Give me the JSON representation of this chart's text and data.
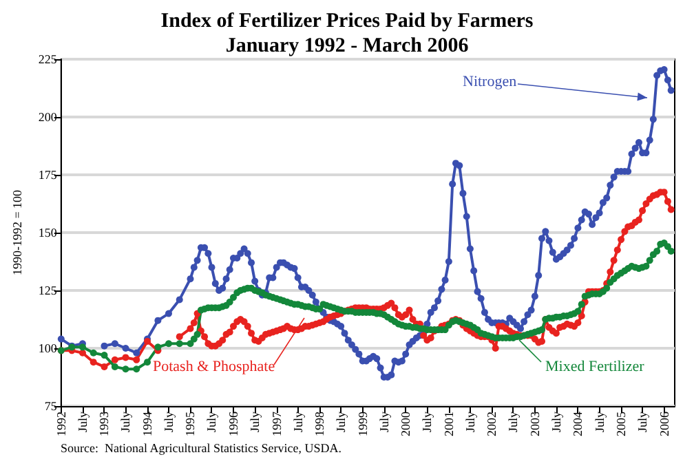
{
  "chart_data": {
    "type": "line",
    "title": "Index of Fertilizer Prices Paid by Farmers",
    "subtitle": "January 1992 - March 2006",
    "ylabel": "1990-1992 = 100",
    "annotations": [
      "Source:  National Agricultural Statistics Service, USDA."
    ],
    "x": [
      "1992-01",
      "1992-04",
      "1992-07",
      "1992-10",
      "1993-01",
      "1993-04",
      "1993-07",
      "1993-10",
      "1994-01",
      "1994-04",
      "1994-07",
      "1994-10",
      "1995-01",
      "1995-02",
      "1995-03",
      "1995-04",
      "1995-05",
      "1995-06",
      "1995-07",
      "1995-08",
      "1995-09",
      "1995-10",
      "1995-11",
      "1995-12",
      "1996-01",
      "1996-02",
      "1996-03",
      "1996-04",
      "1996-05",
      "1996-06",
      "1996-07",
      "1996-08",
      "1996-09",
      "1996-10",
      "1996-11",
      "1996-12",
      "1997-01",
      "1997-02",
      "1997-03",
      "1997-04",
      "1997-05",
      "1997-06",
      "1997-07",
      "1997-08",
      "1997-09",
      "1997-10",
      "1997-11",
      "1997-12",
      "1998-01",
      "1998-02",
      "1998-03",
      "1998-04",
      "1998-05",
      "1998-06",
      "1998-07",
      "1998-08",
      "1998-09",
      "1998-10",
      "1998-11",
      "1998-12",
      "1999-01",
      "1999-02",
      "1999-03",
      "1999-04",
      "1999-05",
      "1999-06",
      "1999-07",
      "1999-08",
      "1999-09",
      "1999-10",
      "1999-11",
      "1999-12",
      "2000-01",
      "2000-02",
      "2000-03",
      "2000-04",
      "2000-05",
      "2000-06",
      "2000-07",
      "2000-08",
      "2000-09",
      "2000-10",
      "2000-11",
      "2000-12",
      "2001-01",
      "2001-02",
      "2001-03",
      "2001-04",
      "2001-05",
      "2001-06",
      "2001-07",
      "2001-08",
      "2001-09",
      "2001-10",
      "2001-11",
      "2001-12",
      "2002-01",
      "2002-02",
      "2002-03",
      "2002-04",
      "2002-05",
      "2002-06",
      "2002-07",
      "2002-08",
      "2002-09",
      "2002-10",
      "2002-11",
      "2002-12",
      "2003-01",
      "2003-02",
      "2003-03",
      "2003-04",
      "2003-05",
      "2003-06",
      "2003-07",
      "2003-08",
      "2003-09",
      "2003-10",
      "2003-11",
      "2003-12",
      "2004-01",
      "2004-02",
      "2004-03",
      "2004-04",
      "2004-05",
      "2004-06",
      "2004-07",
      "2004-08",
      "2004-09",
      "2004-10",
      "2004-11",
      "2004-12",
      "2005-01",
      "2005-02",
      "2005-03",
      "2005-04",
      "2005-05",
      "2005-06",
      "2005-07",
      "2005-08",
      "2005-09",
      "2005-10",
      "2005-11",
      "2005-12",
      "2006-01",
      "2006-02",
      "2006-03"
    ],
    "series": [
      {
        "name": "Nitrogen",
        "color": "#3a4fb0",
        "values": [
          104,
          101,
          102,
          null,
          101,
          102,
          100,
          98,
          104,
          112,
          115,
          121,
          130,
          135,
          138,
          143.5,
          143.5,
          141,
          135,
          128,
          125,
          126,
          130,
          134,
          139,
          139,
          141,
          143,
          141,
          137,
          129,
          125,
          123,
          124,
          130.5,
          130.5,
          135,
          137,
          137,
          136,
          135,
          134.5,
          130.5,
          126.5,
          126.5,
          125,
          123,
          120,
          117,
          115.5,
          113.5,
          112,
          111.5,
          110.5,
          109.5,
          106.5,
          103.5,
          101.5,
          99.5,
          97.5,
          94.5,
          94.5,
          95.5,
          96.5,
          95.5,
          91.5,
          87.5,
          87.5,
          88.5,
          94.5,
          94,
          94.5,
          97.5,
          101.5,
          103,
          104.5,
          105.5,
          106.5,
          110.5,
          115.5,
          117.5,
          120.5,
          125.5,
          129.5,
          137.5,
          171,
          180,
          179,
          167,
          157,
          143,
          133.5,
          124.5,
          121.5,
          115.5,
          112.5,
          111,
          111,
          111,
          111,
          110.5,
          113,
          111.5,
          110,
          108.5,
          111.5,
          114.5,
          116.5,
          122.5,
          131.5,
          147.5,
          150.5,
          146.5,
          141.5,
          138.5,
          139.5,
          141,
          142.5,
          144.5,
          147.5,
          152,
          155.5,
          159,
          158,
          153.5,
          156.5,
          158.5,
          163,
          165,
          170.5,
          174,
          176.5,
          176.5,
          176.5,
          176.5,
          184,
          186.5,
          189,
          184.5,
          184.5,
          190,
          199,
          218,
          220,
          220.5,
          216,
          211.5
        ]
      },
      {
        "name": "Potash & Phosphate",
        "color": "#e8231f",
        "values": [
          99,
          99,
          98,
          94,
          92,
          95,
          96,
          95,
          103,
          99,
          null,
          105,
          108.5,
          111,
          115,
          107.5,
          105,
          102,
          101,
          101,
          102,
          103.5,
          106,
          107,
          109.5,
          111.5,
          112.5,
          111.5,
          109.5,
          106.5,
          103.5,
          103,
          104.5,
          106,
          106.5,
          107,
          107.5,
          108,
          108.5,
          109.5,
          108.5,
          108,
          108,
          108.5,
          109.5,
          109.5,
          110,
          110.5,
          111,
          111.5,
          112.5,
          113.5,
          114,
          114.5,
          115,
          116,
          116.5,
          117,
          117.5,
          117.5,
          117.5,
          117.5,
          117,
          117,
          117,
          117,
          117.5,
          118.5,
          119.5,
          117.5,
          114.5,
          113.5,
          114.5,
          116.5,
          112.5,
          110.5,
          110.5,
          105.5,
          103.5,
          104.5,
          107.5,
          108,
          109.5,
          110,
          110.5,
          112,
          112.5,
          112,
          110,
          108.5,
          107.5,
          106.5,
          105.5,
          105,
          105,
          105,
          103.5,
          100,
          109.5,
          109.5,
          108.5,
          107.5,
          106.5,
          106,
          105.5,
          105.5,
          105.5,
          105.5,
          104,
          102.5,
          103,
          112.5,
          109,
          107.5,
          106.5,
          109,
          109.5,
          110.5,
          110,
          109.5,
          111,
          114,
          120,
          124.5,
          124.5,
          124.5,
          124.5,
          125,
          128,
          133,
          138,
          142.5,
          147,
          150.5,
          152.5,
          153,
          154.5,
          155.5,
          159.5,
          162.5,
          164.5,
          166,
          166.5,
          167.5,
          167.5,
          163.5,
          160
        ]
      },
      {
        "name": "Mixed Fertilizer",
        "color": "#13873a",
        "values": [
          99,
          100.5,
          100.5,
          98,
          97,
          92,
          91,
          91,
          94,
          100.5,
          102,
          102,
          102,
          104,
          106,
          116.5,
          117,
          117.5,
          117.5,
          117.5,
          117.5,
          118,
          118.5,
          120,
          122,
          124,
          125,
          125.5,
          126,
          126,
          125,
          124.5,
          124,
          123,
          122.5,
          122,
          121.5,
          121,
          120.5,
          120,
          119.5,
          119,
          119,
          118.5,
          118,
          118,
          117.5,
          117,
          117,
          119,
          118.5,
          118,
          117.5,
          117,
          116.5,
          116,
          116,
          116,
          115.5,
          115.5,
          115.5,
          115.5,
          115.5,
          115.5,
          115,
          115,
          114.5,
          113.5,
          112.5,
          111.5,
          110.5,
          110,
          109.5,
          109.5,
          109,
          109,
          108.5,
          108.5,
          108,
          108,
          108,
          108,
          108,
          108,
          110,
          111.5,
          112,
          111.5,
          111,
          110.5,
          110,
          109,
          108,
          106.5,
          106,
          105.5,
          105,
          104.5,
          104.5,
          104.5,
          104.5,
          104.5,
          104.5,
          105,
          105,
          105.5,
          106,
          106.5,
          107,
          107.5,
          108,
          112.5,
          113,
          113,
          113.5,
          113.5,
          114,
          114,
          114.5,
          115,
          116,
          119,
          122.5,
          123,
          123.5,
          123.5,
          123.5,
          124.5,
          126,
          128.5,
          130,
          131.5,
          132.5,
          133.5,
          134.5,
          135.5,
          135,
          134.5,
          135,
          135.5,
          138,
          140.5,
          142,
          145,
          145.5,
          144,
          142
        ]
      }
    ],
    "xlim": [
      "1992-01",
      "2006-04"
    ],
    "xticks": [
      "1992",
      {
        "value": "1992-07",
        "label": "July"
      },
      "1993",
      {
        "value": "1993-07",
        "label": "July"
      },
      "1994",
      {
        "value": "1994-07",
        "label": "July"
      },
      "1995",
      {
        "value": "1995-07",
        "label": "July"
      },
      "1996",
      {
        "value": "1996-07",
        "label": "July"
      },
      "1997",
      {
        "value": "1997-07",
        "label": "July"
      },
      "1998",
      {
        "value": "1998-07",
        "label": "July"
      },
      "1999",
      {
        "value": "1999-07",
        "label": "July"
      },
      "2000",
      {
        "value": "2000-07",
        "label": "July"
      },
      "2001",
      {
        "value": "2001-07",
        "label": "July"
      },
      "2002",
      {
        "value": "2002-07",
        "label": "July"
      },
      "2003",
      {
        "value": "2003-07",
        "label": "July"
      },
      "2004",
      {
        "value": "2004-07",
        "label": "July"
      },
      "2005",
      {
        "value": "2005-07",
        "label": "July"
      },
      "2006"
    ],
    "ylim": [
      75,
      225
    ],
    "yticks": [
      75,
      100,
      125,
      150,
      175,
      200,
      225
    ],
    "grid": "y",
    "marker": "circle",
    "line_style": "solid"
  }
}
